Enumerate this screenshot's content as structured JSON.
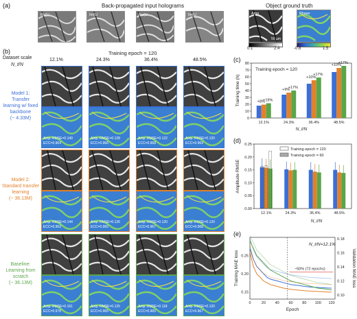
{
  "panel_a": {
    "letter": "(a)",
    "input_title": "Back-propagated input holograms",
    "truth_title": "Object ground truth",
    "holo_labels": [
      "Re(U",
      "Im(U",
      "Re(U",
      "Im(U"
    ],
    "amp_label": "Amp",
    "phase_label": "Phase",
    "amp_range": [
      "0.1",
      "2.4"
    ],
    "phase_range": [
      "-0.8",
      "1.5"
    ],
    "scale_note": "50 µm"
  },
  "panel_b": {
    "letter": "(b)",
    "dataset_scale_label": "Dataset scale",
    "ratio_label": "N_t/N",
    "epoch_label": "Training epoch = 120",
    "scales": [
      "12.1%",
      "24.3%",
      "36.4%",
      "48.5%"
    ],
    "models": [
      {
        "name_lines": [
          "Model 1:",
          "Transfer",
          "learning w/ fixed",
          "backbone",
          "(~ 4.33M)"
        ],
        "color": "#3b6fd6",
        "metrics": [
          [
            "Amp. RMSE=0.140",
            "ECC=0.964"
          ],
          [
            "Amp. RMSE=0.128",
            "ECC=0.966"
          ],
          [
            "Amp. RMSE=0.122",
            "ECC=0.968"
          ],
          [
            "Amp. RMSE=0.120",
            "ECC=0.969"
          ]
        ]
      },
      {
        "name_lines": [
          "Model 2:",
          "Standard transfer",
          "learning",
          "(~ 36.13M)"
        ],
        "color": "#e2812b",
        "metrics": [
          [
            "Amp. RMSE=0.144",
            "ECC=0.963"
          ],
          [
            "Amp. RMSE=0.126",
            "ECC=0.965"
          ],
          [
            "Amp. RMSE=0.120",
            "ECC=0.967"
          ],
          [
            "Amp. RMSE=0.120",
            "ECC=0.968"
          ]
        ]
      },
      {
        "name_lines": [
          "Baseline:",
          "Learning from",
          "scratch",
          "(~ 36.13M)"
        ],
        "color": "#5aa64a",
        "metrics": [
          [
            "Amp. RMSE=0.161",
            "ECC=0.978"
          ],
          [
            "Amp. RMSE=0.125",
            "ECC=0.965"
          ],
          [
            "Amp. RMSE=0.118",
            "ECC=0.965"
          ],
          [
            "Amp. RMSE=0.120",
            "ECC=0.967"
          ]
        ]
      }
    ]
  },
  "colors": {
    "model1": "#3b6fd6",
    "model2": "#e2812b",
    "baseline": "#5aa64a"
  },
  "chart_data": [
    {
      "panel": "(c)",
      "type": "bar",
      "title": "Training epoch = 120",
      "xlabel": "N_t/N",
      "ylabel": "Training time (h)",
      "ylim": [
        0,
        80
      ],
      "yticks": [
        "0",
        "10",
        "20",
        "30",
        "40",
        "50",
        "60",
        "70",
        "80"
      ],
      "categories": [
        "12.1%",
        "24.3%",
        "36.4%",
        "48.5%"
      ],
      "series": [
        {
          "name": "Model 1",
          "values": [
            18,
            34,
            50,
            67
          ]
        },
        {
          "name": "Model 2",
          "values": [
            19.5,
            37,
            55,
            73
          ]
        },
        {
          "name": "Baseline",
          "values": [
            21.5,
            40,
            59,
            76
          ]
        }
      ],
      "annotations": [
        [
          "+8%",
          "+19%"
        ],
        [
          "+9%",
          "+17%"
        ],
        [
          "+10%",
          "+17%"
        ],
        [
          "+10%",
          "+17%"
        ]
      ]
    },
    {
      "panel": "(d)",
      "type": "bar",
      "xlabel": "N_t/N",
      "ylabel": "Amplitude RMSE",
      "ylim": [
        0.0,
        0.25
      ],
      "yticks": [
        "0.00",
        "0.05",
        "0.10",
        "0.15",
        "0.20",
        "0.25"
      ],
      "categories": [
        "12.1%",
        "24.3%",
        "36.4%",
        "48.5%"
      ],
      "legend": [
        "Training epoch = 120",
        "Training epoch = 60"
      ],
      "series_epoch120": [
        {
          "name": "Model 1",
          "values": [
            0.16,
            0.152,
            0.15,
            0.15
          ]
        },
        {
          "name": "Model 2",
          "values": [
            0.158,
            0.148,
            0.143,
            0.14
          ]
        },
        {
          "name": "Baseline",
          "values": [
            0.155,
            0.15,
            0.14,
            0.138
          ]
        }
      ],
      "series_epoch60": [
        {
          "name": "Model 1",
          "values": [
            0.163,
            0,
            0,
            0
          ]
        },
        {
          "name": "Model 2",
          "values": [
            0.166,
            0,
            0,
            0
          ]
        },
        {
          "name": "Baseline",
          "values": [
            0.223,
            0,
            0,
            0
          ]
        }
      ],
      "errors": [
        0.035,
        0.03,
        0.03,
        0.03
      ]
    },
    {
      "panel": "(e)",
      "type": "line",
      "title": "N_t/N=12.1%",
      "xlabel": "Epoch",
      "ylabel": "Training MAE loss",
      "ylabel2": "Validation MAE loss",
      "xlim": [
        0,
        125
      ],
      "xticks": [
        "0",
        "20",
        "40",
        "60",
        "80",
        "100",
        "120"
      ],
      "yticks": [
        "0.15",
        "0.20",
        "0.25"
      ],
      "yticks2": [
        "0.10",
        "0.12",
        "0.14",
        "0.16",
        "0.18"
      ],
      "annotation": "~50% (72 epochs)",
      "x": [
        0,
        5,
        10,
        15,
        20,
        25,
        30,
        40,
        50,
        60,
        70,
        80,
        90,
        100,
        110,
        120
      ],
      "series": [
        {
          "name": "Model 1",
          "values": [
            0.27,
            0.24,
            0.22,
            0.21,
            0.2,
            0.19,
            0.185,
            0.18,
            0.175,
            0.17,
            0.168,
            0.165,
            0.163,
            0.162,
            0.161,
            0.16
          ]
        },
        {
          "name": "Model 2",
          "values": [
            0.26,
            0.22,
            0.2,
            0.19,
            0.18,
            0.175,
            0.17,
            0.165,
            0.16,
            0.157,
            0.155,
            0.153,
            0.152,
            0.151,
            0.15,
            0.149
          ]
        },
        {
          "name": "Baseline",
          "values": [
            0.29,
            0.27,
            0.25,
            0.24,
            0.23,
            0.22,
            0.21,
            0.2,
            0.19,
            0.18,
            0.175,
            0.17,
            0.165,
            0.16,
            0.158,
            0.155
          ]
        }
      ]
    }
  ]
}
